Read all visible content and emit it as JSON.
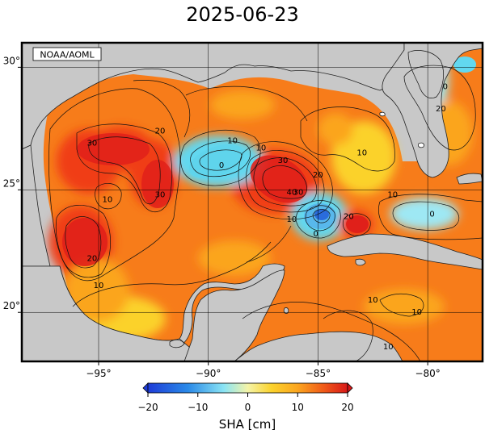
{
  "title": "2025-06-23",
  "credit": "NOAA/AOML",
  "map": {
    "lon_range": [
      -98.5,
      -77.5
    ],
    "lat_range": [
      18,
      31
    ],
    "lon_ticks": [
      {
        "value": -95,
        "label": "−95°"
      },
      {
        "value": -90,
        "label": "−90°"
      },
      {
        "value": -85,
        "label": "−85°"
      },
      {
        "value": -80,
        "label": "−80°"
      }
    ],
    "lat_ticks": [
      {
        "value": 20,
        "label": "20°"
      },
      {
        "value": 25,
        "label": "25°"
      },
      {
        "value": 30,
        "label": "30°"
      }
    ],
    "colors": {
      "land": "#c8c8c8",
      "deep_red": "#e0201a",
      "red": "#f03c14",
      "orange": "#f77c1a",
      "light_orange": "#fba51f",
      "yellow": "#fbd22c",
      "cyan": "#62d8f0",
      "light_cyan": "#9ee8f4",
      "blue": "#2a6cdc"
    },
    "contour_labels": [
      {
        "text": "30",
        "lon": -95.3,
        "lat": 26.9
      },
      {
        "text": "20",
        "lon": -92.2,
        "lat": 27.4
      },
      {
        "text": "30",
        "lon": -92.2,
        "lat": 24.8
      },
      {
        "text": "10",
        "lon": -94.6,
        "lat": 24.6
      },
      {
        "text": "20",
        "lon": -95.3,
        "lat": 22.2
      },
      {
        "text": "10",
        "lon": -95.0,
        "lat": 21.1
      },
      {
        "text": "10",
        "lon": -88.9,
        "lat": 27.0
      },
      {
        "text": "0",
        "lon": -89.4,
        "lat": 26.0
      },
      {
        "text": "10",
        "lon": -87.6,
        "lat": 26.7
      },
      {
        "text": "30",
        "lon": -86.6,
        "lat": 26.2
      },
      {
        "text": "40",
        "lon": -86.2,
        "lat": 24.9
      },
      {
        "text": "20",
        "lon": -85.0,
        "lat": 25.6
      },
      {
        "text": "30",
        "lon": -85.9,
        "lat": 24.9
      },
      {
        "text": "10",
        "lon": -86.2,
        "lat": 23.8
      },
      {
        "text": "0",
        "lon": -85.1,
        "lat": 23.2
      },
      {
        "text": "20",
        "lon": -83.6,
        "lat": 23.9
      },
      {
        "text": "10",
        "lon": -83.0,
        "lat": 26.5
      },
      {
        "text": "20",
        "lon": -79.4,
        "lat": 28.3
      },
      {
        "text": "0",
        "lon": -79.2,
        "lat": 29.2
      },
      {
        "text": "0",
        "lon": -79.8,
        "lat": 24.0
      },
      {
        "text": "10",
        "lon": -81.6,
        "lat": 24.8
      },
      {
        "text": "10",
        "lon": -82.5,
        "lat": 20.5
      },
      {
        "text": "10",
        "lon": -80.5,
        "lat": 20.0
      },
      {
        "text": "10",
        "lon": -81.8,
        "lat": 18.6
      }
    ]
  },
  "colorbar": {
    "label": "SHA [cm]",
    "ticks": [
      {
        "value": -20,
        "label": "−20"
      },
      {
        "value": -10,
        "label": "−10"
      },
      {
        "value": 0,
        "label": "0"
      },
      {
        "value": 10,
        "label": "10"
      },
      {
        "value": 20,
        "label": "20"
      }
    ]
  }
}
